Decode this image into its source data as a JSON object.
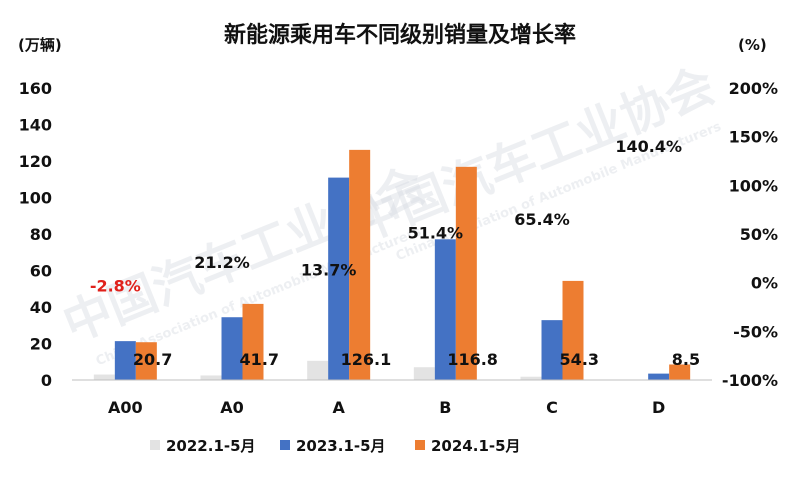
{
  "chart_data": {
    "type": "bar",
    "title": "新能源乘用车不同级别销量及增长率",
    "left_unit": "(万辆)",
    "right_unit": "(%)",
    "categories": [
      "A00",
      "A0",
      "A",
      "B",
      "C",
      "D"
    ],
    "ylim": [
      0,
      160
    ],
    "yticks": [
      "0",
      "20",
      "40",
      "60",
      "80",
      "100",
      "120",
      "140",
      "160"
    ],
    "y2lim": [
      -100,
      200
    ],
    "y2ticks": [
      "-100%",
      "-50%",
      "0%",
      "50%",
      "100%",
      "150%",
      "200%"
    ],
    "series": [
      {
        "name": "2022.1-5月",
        "color": "#e3e3e3",
        "values": [
          3.0,
          2.5,
          10.5,
          7.0,
          1.8,
          0.2
        ]
      },
      {
        "name": "2023.1-5月",
        "color": "#4472c4",
        "values": [
          21.3,
          34.4,
          110.9,
          77.1,
          32.8,
          3.5
        ]
      },
      {
        "name": "2024.1-5月",
        "color": "#ed7d31",
        "values": [
          20.7,
          41.7,
          126.1,
          116.8,
          54.3,
          8.5
        ]
      }
    ],
    "value_labels": [
      "20.7",
      "41.7",
      "126.1",
      "116.8",
      "54.3",
      "8.5"
    ],
    "growth_labels": [
      {
        "text": "-2.8%",
        "value": -2.8,
        "color": "#e0211b"
      },
      {
        "text": "21.2%",
        "value": 21.2,
        "color": "#111111"
      },
      {
        "text": "13.7%",
        "value": 13.7,
        "color": "#111111"
      },
      {
        "text": "51.4%",
        "value": 51.4,
        "color": "#111111"
      },
      {
        "text": "65.4%",
        "value": 65.4,
        "color": "#111111"
      },
      {
        "text": "140.4%",
        "value": 140.4,
        "color": "#111111"
      }
    ],
    "legend_position": "bottom",
    "grid": false
  },
  "watermark": {
    "main": "中国汽车工业协会",
    "sub": "China Association of Automobile Manufacturers"
  }
}
